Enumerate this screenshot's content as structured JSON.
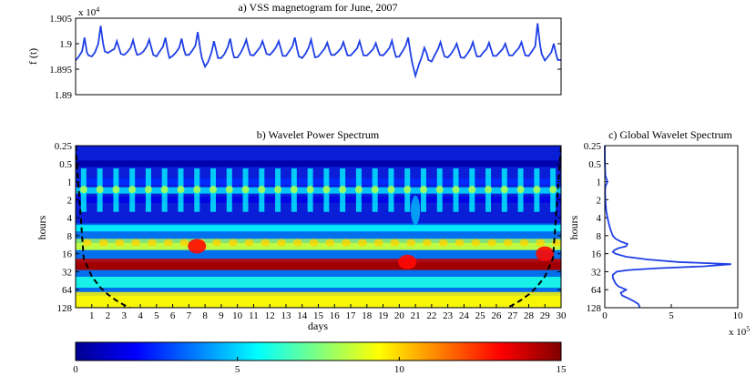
{
  "chart_data": [
    {
      "type": "line",
      "title": "a) VSS magnetogram for June, 2007",
      "ylabel": "f (t)",
      "y_multiplier": "x 10",
      "y_multiplier_exp": "4",
      "yticks": [
        "1.905",
        "1.9",
        "1.895",
        "1.89"
      ],
      "ytick_values": [
        1.905,
        1.9,
        1.895,
        1.89
      ],
      "ylim": [
        1.89,
        1.905
      ],
      "xlim": [
        0,
        30
      ],
      "line_color": "#1f3fe6",
      "series": [
        {
          "x": [
            0.0,
            0.2,
            0.4,
            0.55,
            0.7,
            0.8,
            1.0,
            1.2,
            1.4,
            1.55,
            1.7,
            1.8,
            2.0,
            2.2,
            2.4,
            2.55,
            2.7,
            2.8,
            3.0,
            3.2,
            3.4,
            3.55,
            3.7,
            3.8,
            4.0,
            4.2,
            4.4,
            4.55,
            4.7,
            4.8,
            5.0,
            5.2,
            5.4,
            5.55,
            5.7,
            5.8,
            6.0,
            6.2,
            6.4,
            6.55,
            6.7,
            6.8,
            7.0,
            7.2,
            7.4,
            7.55,
            7.7,
            7.8,
            8.0,
            8.2,
            8.4,
            8.55,
            8.7,
            8.8,
            9.0,
            9.2,
            9.4,
            9.55,
            9.7,
            9.8,
            10.0,
            10.2,
            10.4,
            10.55,
            10.7,
            10.8,
            11.0,
            11.2,
            11.4,
            11.55,
            11.7,
            11.8,
            12.0,
            12.2,
            12.4,
            12.55,
            12.7,
            12.8,
            13.0,
            13.2,
            13.4,
            13.55,
            13.7,
            13.8,
            14.0,
            14.2,
            14.4,
            14.55,
            14.7,
            14.8,
            15.0,
            15.2,
            15.4,
            15.55,
            15.7,
            15.8,
            16.0,
            16.2,
            16.4,
            16.55,
            16.7,
            16.8,
            17.0,
            17.2,
            17.4,
            17.55,
            17.7,
            17.8,
            18.0,
            18.2,
            18.4,
            18.55,
            18.7,
            18.8,
            19.0,
            19.2,
            19.4,
            19.55,
            19.7,
            19.8,
            20.0,
            20.2,
            20.4,
            20.55,
            20.7,
            20.8,
            21.0,
            21.2,
            21.4,
            21.55,
            21.7,
            21.8,
            22.0,
            22.2,
            22.4,
            22.55,
            22.7,
            22.8,
            23.0,
            23.2,
            23.4,
            23.55,
            23.7,
            23.8,
            24.0,
            24.2,
            24.4,
            24.55,
            24.7,
            24.8,
            25.0,
            25.2,
            25.4,
            25.55,
            25.7,
            25.8,
            26.0,
            26.2,
            26.4,
            26.55,
            26.7,
            26.8,
            27.0,
            27.2,
            27.4,
            27.55,
            27.7,
            27.8,
            28.0,
            28.2,
            28.4,
            28.55,
            28.7,
            28.8,
            29.0,
            29.2,
            29.4,
            29.55,
            29.7,
            29.8,
            30.0
          ],
          "y": [
            1.8967,
            1.8975,
            1.8985,
            1.9012,
            1.8983,
            1.8977,
            1.8975,
            1.8983,
            1.9,
            1.9035,
            1.9,
            1.8985,
            1.8982,
            1.8986,
            1.899,
            1.9005,
            1.899,
            1.898,
            1.8978,
            1.8984,
            1.8992,
            1.9007,
            1.8988,
            1.8978,
            1.898,
            1.8985,
            1.8995,
            1.9008,
            1.899,
            1.8978,
            1.8975,
            1.8985,
            1.8994,
            1.9012,
            1.8985,
            1.8972,
            1.8976,
            1.8983,
            1.8992,
            1.901,
            1.8988,
            1.8978,
            1.8978,
            1.8986,
            1.8996,
            1.9023,
            1.899,
            1.8972,
            1.8955,
            1.8965,
            1.8983,
            1.9005,
            1.8985,
            1.8972,
            1.8972,
            1.898,
            1.8993,
            1.901,
            1.8985,
            1.8973,
            1.8973,
            1.8982,
            1.8995,
            1.9008,
            1.8988,
            1.8978,
            1.8977,
            1.8985,
            1.8993,
            1.9005,
            1.899,
            1.898,
            1.8978,
            1.8985,
            1.8994,
            1.9005,
            1.8988,
            1.8976,
            1.8976,
            1.8985,
            1.8995,
            1.9012,
            1.8988,
            1.8975,
            1.8972,
            1.898,
            1.8992,
            1.9008,
            1.8986,
            1.8973,
            1.8975,
            1.8983,
            1.8991,
            1.9002,
            1.8986,
            1.8978,
            1.8978,
            1.8984,
            1.8991,
            1.9003,
            1.8987,
            1.8977,
            1.8977,
            1.8984,
            1.8991,
            1.9005,
            1.8987,
            1.8977,
            1.8977,
            1.8983,
            1.899,
            1.9001,
            1.8986,
            1.8978,
            1.8977,
            1.8984,
            1.8992,
            1.9006,
            1.8985,
            1.8974,
            1.8975,
            1.8985,
            1.8996,
            1.9012,
            1.898,
            1.8963,
            1.8937,
            1.8958,
            1.8975,
            1.8992,
            1.8981,
            1.8968,
            1.8965,
            1.8978,
            1.899,
            1.9003,
            1.8985,
            1.8975,
            1.8973,
            1.898,
            1.899,
            1.9,
            1.8984,
            1.8973,
            1.8972,
            1.898,
            1.899,
            1.9003,
            1.8985,
            1.8975,
            1.8975,
            1.8983,
            1.899,
            1.9002,
            1.8986,
            1.8976,
            1.8976,
            1.8983,
            1.899,
            1.9,
            1.8985,
            1.8977,
            1.8977,
            1.8985,
            1.8992,
            1.9003,
            1.8986,
            1.8977,
            1.8976,
            1.8985,
            1.8995,
            1.904,
            1.8998,
            1.898,
            1.8967,
            1.8975,
            1.8983,
            1.9,
            1.8978,
            1.8968,
            1.8968
          ]
        }
      ]
    },
    {
      "type": "heatmap",
      "title": "b) Wavelet Power Spectrum",
      "xlabel": "days",
      "ylabel": "hours",
      "xticks": [
        "1",
        "2",
        "3",
        "4",
        "5",
        "6",
        "7",
        "8",
        "9",
        "10",
        "11",
        "12",
        "13",
        "14",
        "15",
        "16",
        "17",
        "18",
        "19",
        "20",
        "21",
        "22",
        "23",
        "24",
        "25",
        "26",
        "27",
        "28",
        "29",
        "30"
      ],
      "yticks": [
        "0.25",
        "0.5",
        "1",
        "2",
        "4",
        "8",
        "16",
        "32",
        "64",
        "128"
      ],
      "ytick_values": [
        0.25,
        0.5,
        1,
        2,
        4,
        8,
        16,
        32,
        64,
        128
      ],
      "xlim": [
        0,
        30
      ],
      "ylim": [
        0.25,
        128
      ],
      "yscale": "log2",
      "cone_of_influence": "dashed black",
      "colormap": "jet",
      "colorbar": {
        "ticks": [
          "0",
          "5",
          "10",
          "15"
        ],
        "tick_values": [
          0,
          5,
          10,
          15
        ],
        "range": [
          0,
          15
        ],
        "placement": "bottom"
      },
      "bands": [
        {
          "period_hours": 0.5,
          "level": 0.6
        },
        {
          "period_hours": 1,
          "level": 2.5
        },
        {
          "period_hours": 1.4,
          "level": 5
        },
        {
          "period_hours": 2,
          "level": 1.5
        },
        {
          "period_hours": 6,
          "level": 5.5
        },
        {
          "period_hours": 12,
          "level": 8.5
        },
        {
          "period_hours": 24,
          "level": 14
        },
        {
          "period_hours": 48,
          "level": 6
        },
        {
          "period_hours": 100,
          "level": 9
        }
      ]
    },
    {
      "type": "line",
      "title": "c) Global Wavelet Spectrum",
      "ylabel": "hours",
      "yticks": [
        "0.25",
        "0.5",
        "1",
        "2",
        "4",
        "8",
        "16",
        "32",
        "64",
        "128"
      ],
      "ytick_values": [
        0.25,
        0.5,
        1,
        2,
        4,
        8,
        16,
        32,
        64,
        128
      ],
      "xticks": [
        "0",
        "5",
        "10"
      ],
      "xtick_values": [
        0,
        5,
        10
      ],
      "x_multiplier": "x 10",
      "x_multiplier_exp": "5",
      "xlim": [
        0,
        10
      ],
      "ylim": [
        0.25,
        128
      ],
      "line_color": "#1f3fe6",
      "series": [
        {
          "period": [
            0.25,
            0.5,
            0.8,
            1.0,
            1.2,
            1.5,
            2,
            3,
            4,
            5,
            6,
            7,
            8,
            9,
            10,
            11,
            12,
            13,
            14,
            15,
            16,
            18,
            20,
            22,
            24,
            26,
            28,
            30,
            32,
            36,
            40,
            45,
            50,
            56,
            64,
            72,
            80,
            90,
            100,
            110,
            120,
            128
          ],
          "power": [
            0.0,
            0.01,
            0.05,
            0.2,
            0.05,
            0.02,
            0.04,
            0.1,
            0.2,
            0.3,
            0.4,
            0.5,
            0.6,
            0.8,
            1.2,
            1.7,
            1.6,
            1.0,
            0.7,
            0.6,
            0.8,
            1.6,
            3.2,
            5.5,
            9.5,
            7.5,
            4.0,
            1.8,
            0.9,
            0.6,
            0.6,
            0.7,
            0.8,
            1.0,
            1.6,
            1.2,
            1.3,
            1.8,
            2.2,
            2.5,
            2.6,
            2.6
          ]
        }
      ]
    }
  ]
}
